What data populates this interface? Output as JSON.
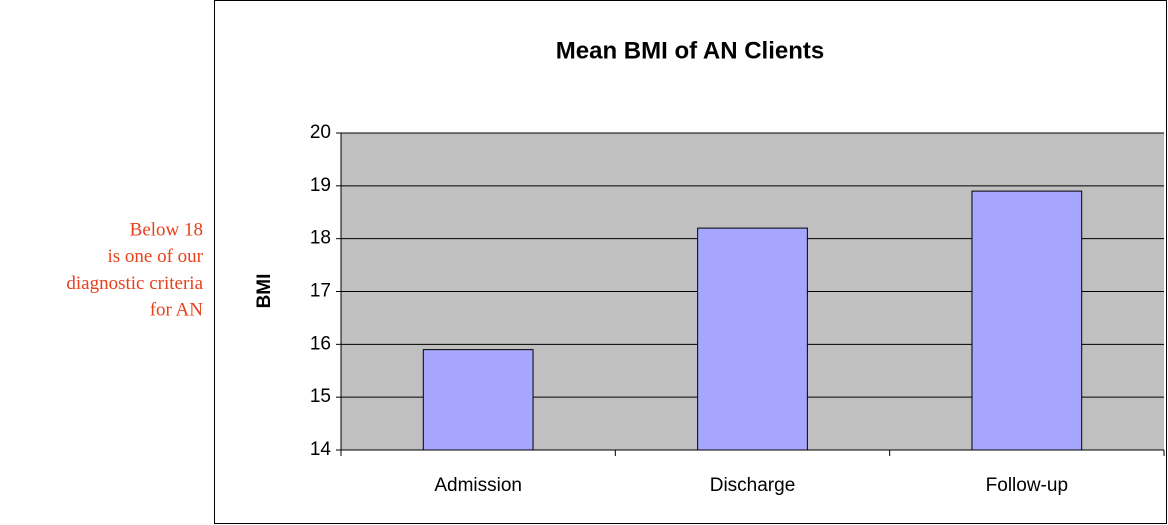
{
  "chart_data": {
    "type": "bar",
    "title": "Mean BMI of AN Clients",
    "y_label": "BMI",
    "categories": [
      "Admission",
      "Discharge",
      "Follow-up"
    ],
    "values": [
      15.9,
      18.2,
      18.9
    ],
    "color": "#a6a6ff",
    "ylim": [
      14,
      20
    ],
    "yticks": [
      14,
      15,
      16,
      17,
      18,
      19,
      20
    ],
    "grid": true,
    "annotations": [
      "Below 18",
      "is one of our",
      "diagnostic criteria",
      "for AN"
    ]
  }
}
